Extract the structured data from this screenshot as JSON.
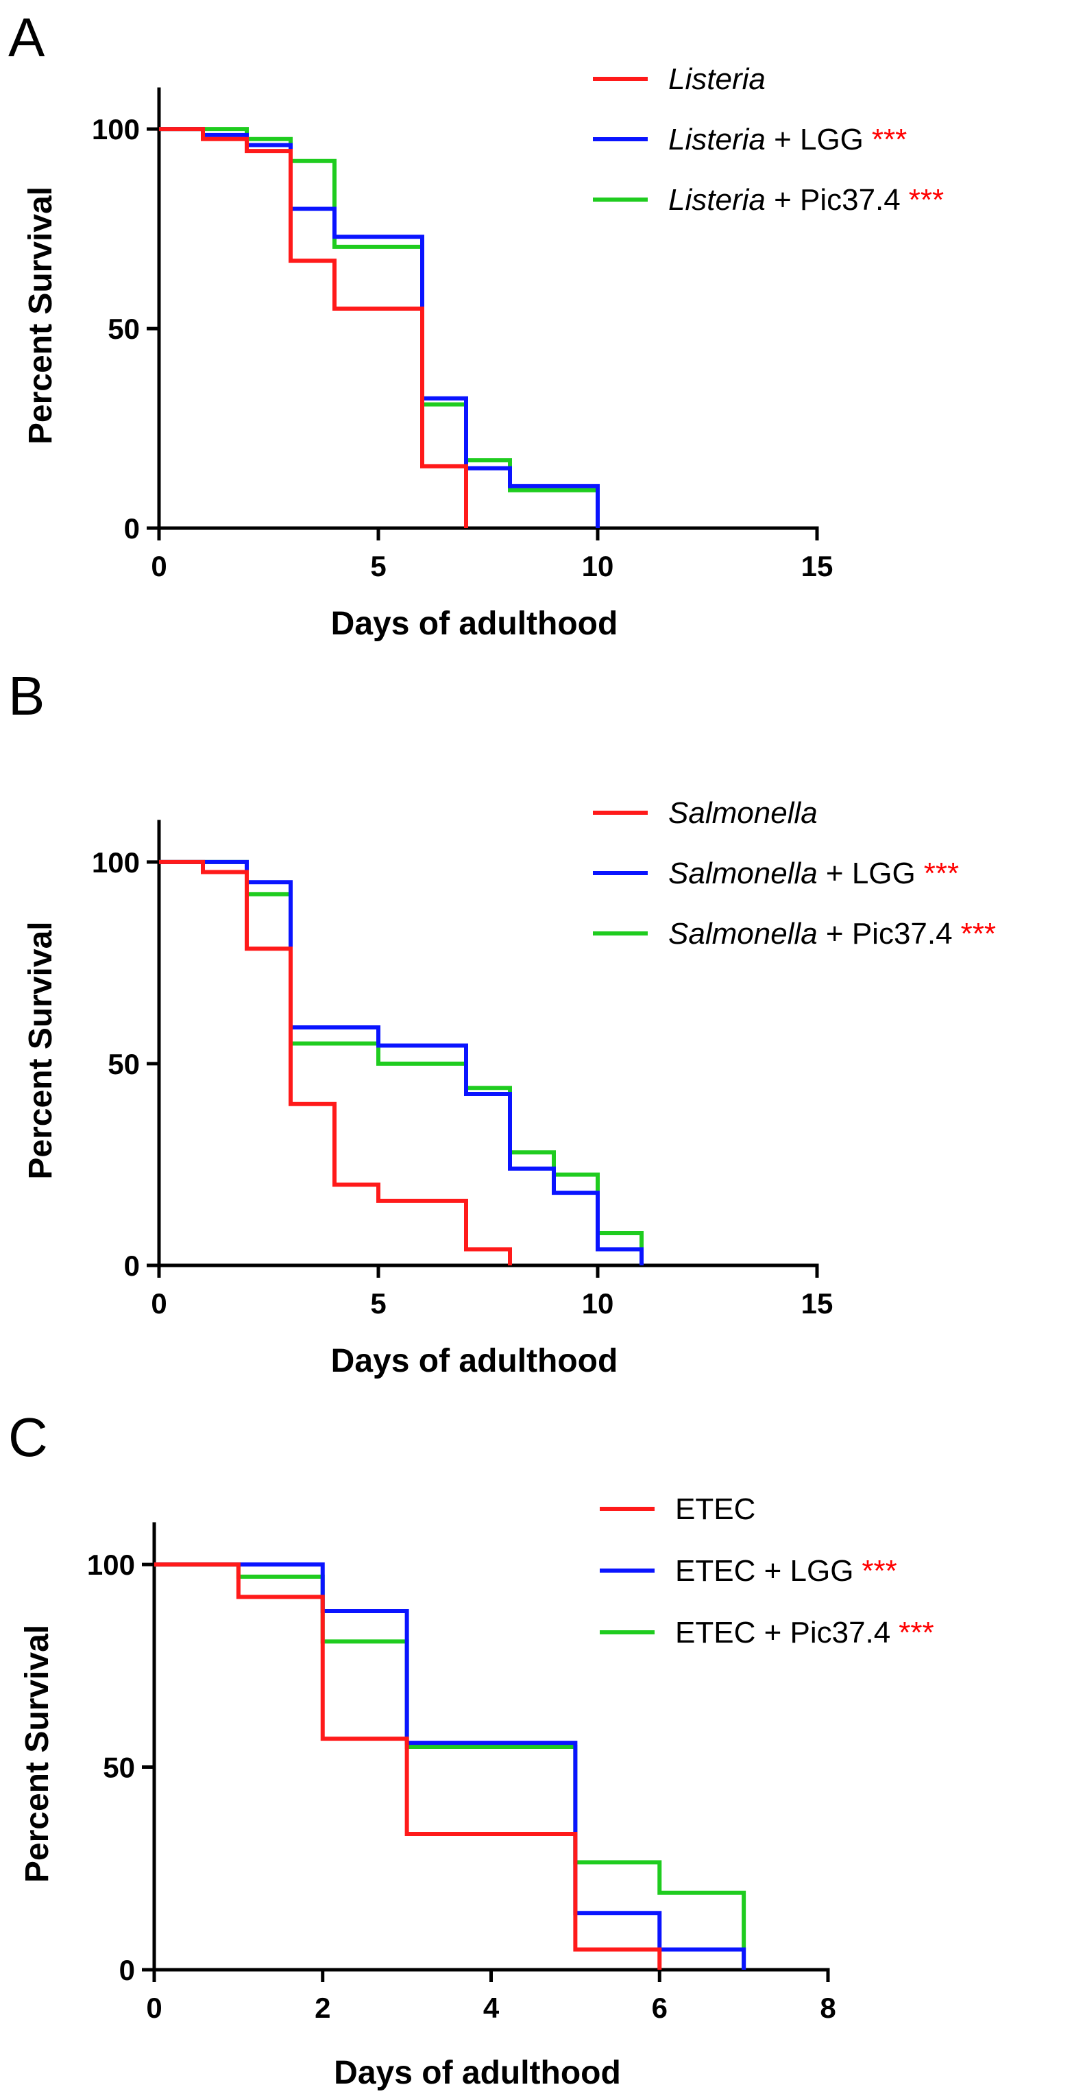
{
  "chart_data": [
    {
      "panel": "A",
      "type": "line",
      "step": true,
      "xlabel": "Days of adulthood",
      "ylabel": "Percent Survival",
      "xlim": [
        0,
        15
      ],
      "ylim": [
        0,
        110
      ],
      "xticks": [
        0,
        5,
        10,
        15
      ],
      "yticks": [
        0,
        50,
        100
      ],
      "significance": "***",
      "series": [
        {
          "name": "Listeria",
          "label_italic": "Listeria",
          "label_rest": "",
          "stars": false,
          "color": "#ff1a1a",
          "x": [
            0,
            1,
            2,
            3,
            4,
            6,
            7
          ],
          "y": [
            100,
            97.5,
            94.5,
            67,
            55,
            15.5,
            0
          ]
        },
        {
          "name": "Listeria + LGG",
          "label_italic": "Listeria",
          "label_rest": " + LGG",
          "stars": true,
          "color": "#0a14ff",
          "x": [
            0,
            1,
            2,
            3,
            4,
            6,
            7,
            8,
            10
          ],
          "y": [
            100,
            98.5,
            96,
            80,
            73,
            32.5,
            15,
            10.5,
            0
          ]
        },
        {
          "name": "Listeria + Pic37.4",
          "label_italic": "Listeria",
          "label_rest": " + Pic37.4",
          "stars": true,
          "color": "#1fcc1f",
          "x": [
            0,
            2,
            3,
            4,
            6,
            7,
            8,
            10
          ],
          "y": [
            100,
            97.5,
            92,
            70.5,
            31,
            17,
            9.5,
            0
          ]
        }
      ]
    },
    {
      "panel": "B",
      "type": "line",
      "step": true,
      "xlabel": "Days of adulthood",
      "ylabel": "Percent Survival",
      "xlim": [
        0,
        15
      ],
      "ylim": [
        0,
        110
      ],
      "xticks": [
        0,
        5,
        10,
        15
      ],
      "yticks": [
        0,
        50,
        100
      ],
      "significance": "***",
      "series": [
        {
          "name": "Salmonella",
          "label_italic": "Salmonella",
          "label_rest": "",
          "stars": false,
          "color": "#ff1a1a",
          "x": [
            0,
            1,
            2,
            3,
            4,
            5,
            7,
            8
          ],
          "y": [
            100,
            97.5,
            78.5,
            40,
            20,
            16,
            4,
            0
          ]
        },
        {
          "name": "Salmonella + LGG",
          "label_italic": "Salmonella",
          "label_rest": " + LGG",
          "stars": true,
          "color": "#0a14ff",
          "x": [
            0,
            2,
            3,
            5,
            7,
            8,
            9,
            10,
            11
          ],
          "y": [
            100,
            95,
            59,
            54.5,
            42.5,
            24,
            18,
            4,
            0
          ]
        },
        {
          "name": "Salmonella + Pic37.4",
          "label_italic": "Salmonella",
          "label_rest": " + Pic37.4",
          "stars": true,
          "color": "#1fcc1f",
          "x": [
            0,
            2,
            3,
            5,
            7,
            8,
            9,
            10,
            11
          ],
          "y": [
            100,
            92,
            55,
            50,
            44,
            28,
            22.5,
            8,
            0
          ]
        }
      ]
    },
    {
      "panel": "C",
      "type": "line",
      "step": true,
      "xlabel": "Days of adulthood",
      "ylabel": "Percent Survival",
      "xlim": [
        0,
        8
      ],
      "ylim": [
        0,
        110
      ],
      "xticks": [
        0,
        2,
        4,
        6,
        8
      ],
      "yticks": [
        0,
        50,
        100
      ],
      "significance": "***",
      "series": [
        {
          "name": "ETEC",
          "label_italic": "",
          "label_rest": "ETEC",
          "stars": false,
          "color": "#ff1a1a",
          "x": [
            0,
            1,
            2,
            3,
            5,
            6
          ],
          "y": [
            100,
            92,
            57,
            33.5,
            5,
            0
          ]
        },
        {
          "name": "ETEC + LGG",
          "label_italic": "",
          "label_rest": "ETEC + LGG",
          "stars": true,
          "color": "#0a14ff",
          "x": [
            0,
            2,
            3,
            5,
            6,
            7
          ],
          "y": [
            100,
            88.5,
            56,
            14,
            5,
            0
          ]
        },
        {
          "name": "ETEC + Pic37.4",
          "label_italic": "",
          "label_rest": "ETEC + Pic37.4",
          "stars": true,
          "color": "#1fcc1f",
          "x": [
            0,
            1,
            2,
            3,
            5,
            6,
            7
          ],
          "y": [
            100,
            97,
            81,
            55,
            26.5,
            19,
            0
          ]
        }
      ]
    }
  ]
}
